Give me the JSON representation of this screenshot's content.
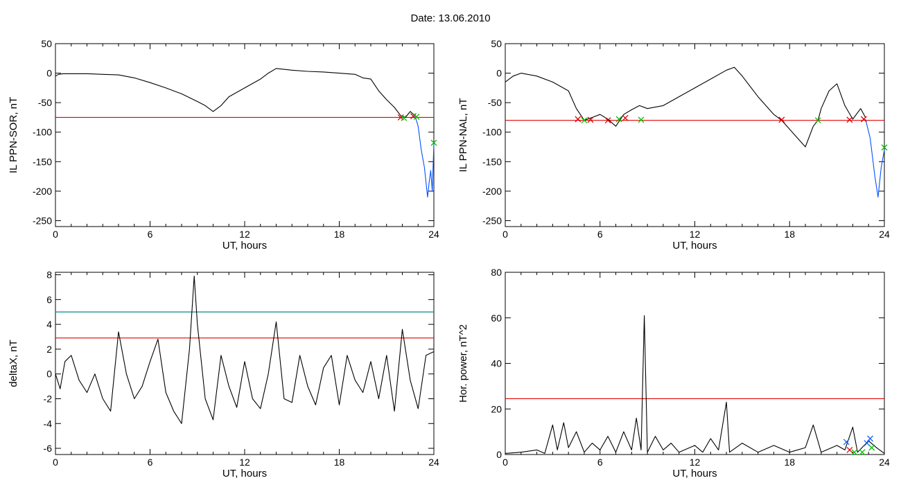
{
  "figure": {
    "title": "Date:  13.06.2010"
  },
  "chart_data": [
    {
      "type": "line",
      "ylabel": "IL PPN-SOR, nT",
      "xlabel": "UT, hours",
      "xlim": [
        0,
        24
      ],
      "ylim": [
        -260,
        50
      ],
      "xticks": [
        0,
        6,
        12,
        18,
        24
      ],
      "yticks": [
        50,
        0,
        -50,
        -100,
        -150,
        -200,
        -250
      ],
      "thresholds": [
        {
          "value": -75,
          "color": "#e00000"
        }
      ],
      "series": [
        {
          "color": "#000000",
          "points": [
            [
              0,
              -5
            ],
            [
              0.2,
              -2
            ],
            [
              0.5,
              -1
            ],
            [
              1,
              -1
            ],
            [
              2,
              -1
            ],
            [
              3,
              -2
            ],
            [
              4,
              -3
            ],
            [
              5,
              -8
            ],
            [
              6,
              -16
            ],
            [
              7,
              -25
            ],
            [
              8,
              -35
            ],
            [
              9,
              -48
            ],
            [
              9.5,
              -55
            ],
            [
              10,
              -65
            ],
            [
              10.5,
              -55
            ],
            [
              11,
              -40
            ],
            [
              12,
              -25
            ],
            [
              13,
              -10
            ],
            [
              13.5,
              0
            ],
            [
              14,
              8
            ],
            [
              15,
              5
            ],
            [
              16,
              3
            ],
            [
              17,
              2
            ],
            [
              18,
              0
            ],
            [
              19,
              -2
            ],
            [
              19.5,
              -8
            ],
            [
              20,
              -10
            ],
            [
              20.5,
              -30
            ],
            [
              21,
              -45
            ],
            [
              21.5,
              -58
            ],
            [
              21.9,
              -72
            ],
            [
              22.2,
              -75
            ],
            [
              22.5,
              -65
            ],
            [
              22.8,
              -72
            ]
          ]
        },
        {
          "color": "#0050ff",
          "points": [
            [
              22.8,
              -72
            ],
            [
              23,
              -90
            ],
            [
              23.2,
              -130
            ],
            [
              23.4,
              -160
            ],
            [
              23.6,
              -210
            ],
            [
              23.7,
              -185
            ],
            [
              23.8,
              -165
            ],
            [
              23.9,
              -200
            ],
            [
              24,
              -120
            ]
          ]
        }
      ],
      "markers": [
        {
          "x": 21.9,
          "y": -75,
          "color": "#e00000"
        },
        {
          "x": 22.1,
          "y": -76,
          "color": "#00c000"
        },
        {
          "x": 22.7,
          "y": -73,
          "color": "#e00000"
        },
        {
          "x": 22.9,
          "y": -74,
          "color": "#00c000"
        },
        {
          "x": 24,
          "y": -118,
          "color": "#00c000"
        }
      ]
    },
    {
      "type": "line",
      "ylabel": "IL PPN-NAL, nT",
      "xlabel": "UT, hours",
      "xlim": [
        0,
        24
      ],
      "ylim": [
        -260,
        50
      ],
      "xticks": [
        0,
        6,
        12,
        18,
        24
      ],
      "yticks": [
        50,
        0,
        -50,
        -100,
        -150,
        -200,
        -250
      ],
      "thresholds": [
        {
          "value": -80,
          "color": "#e00000"
        }
      ],
      "series": [
        {
          "color": "#000000",
          "points": [
            [
              0,
              -15
            ],
            [
              0.5,
              -5
            ],
            [
              1,
              0
            ],
            [
              2,
              -5
            ],
            [
              3,
              -15
            ],
            [
              4,
              -30
            ],
            [
              4.5,
              -60
            ],
            [
              5,
              -80
            ],
            [
              5.5,
              -75
            ],
            [
              6,
              -70
            ],
            [
              6.5,
              -78
            ],
            [
              7,
              -90
            ],
            [
              7.5,
              -70
            ],
            [
              8,
              -62
            ],
            [
              8.5,
              -55
            ],
            [
              9,
              -60
            ],
            [
              10,
              -55
            ],
            [
              11,
              -40
            ],
            [
              12,
              -25
            ],
            [
              13,
              -10
            ],
            [
              14,
              5
            ],
            [
              14.5,
              10
            ],
            [
              15,
              -5
            ],
            [
              16,
              -40
            ],
            [
              17,
              -70
            ],
            [
              17.5,
              -80
            ],
            [
              18,
              -95
            ],
            [
              18.5,
              -110
            ],
            [
              19,
              -125
            ],
            [
              19.5,
              -90
            ],
            [
              19.8,
              -80
            ],
            [
              20,
              -60
            ],
            [
              20.5,
              -30
            ],
            [
              21,
              -18
            ],
            [
              21.5,
              -55
            ],
            [
              22,
              -78
            ],
            [
              22.5,
              -60
            ],
            [
              22.8,
              -75
            ]
          ]
        },
        {
          "color": "#0050ff",
          "points": [
            [
              22.8,
              -78
            ],
            [
              23.1,
              -110
            ],
            [
              23.4,
              -175
            ],
            [
              23.6,
              -210
            ],
            [
              23.8,
              -160
            ],
            [
              24,
              -130
            ]
          ]
        }
      ],
      "markers": [
        {
          "x": 4.6,
          "y": -78,
          "color": "#e00000"
        },
        {
          "x": 5.0,
          "y": -80,
          "color": "#00c000"
        },
        {
          "x": 5.4,
          "y": -79,
          "color": "#e00000"
        },
        {
          "x": 6.5,
          "y": -80,
          "color": "#e00000"
        },
        {
          "x": 7.2,
          "y": -78,
          "color": "#00c000"
        },
        {
          "x": 7.6,
          "y": -76,
          "color": "#e00000"
        },
        {
          "x": 8.6,
          "y": -79,
          "color": "#00c000"
        },
        {
          "x": 17.5,
          "y": -79,
          "color": "#e00000"
        },
        {
          "x": 19.8,
          "y": -80,
          "color": "#00c000"
        },
        {
          "x": 21.8,
          "y": -79,
          "color": "#e00000"
        },
        {
          "x": 22.7,
          "y": -78,
          "color": "#e00000"
        },
        {
          "x": 24,
          "y": -126,
          "color": "#00c000"
        }
      ]
    },
    {
      "type": "line",
      "ylabel": "deltaX, nT",
      "xlabel": "UT, hours",
      "xlim": [
        0,
        24
      ],
      "ylim": [
        -6.5,
        8.2
      ],
      "xticks": [
        0,
        6,
        12,
        18,
        24
      ],
      "yticks": [
        8,
        6,
        4,
        2,
        0,
        -2,
        -4,
        -6
      ],
      "thresholds": [
        {
          "value": 5.0,
          "color": "#008b8b"
        },
        {
          "value": 2.9,
          "color": "#e00000"
        }
      ],
      "series": [
        {
          "color": "#000000",
          "points": [
            [
              0,
              0
            ],
            [
              0.3,
              -1.2
            ],
            [
              0.6,
              1
            ],
            [
              1,
              1.5
            ],
            [
              1.5,
              -0.5
            ],
            [
              2,
              -1.5
            ],
            [
              2.5,
              0
            ],
            [
              3,
              -2
            ],
            [
              3.5,
              -3
            ],
            [
              4,
              3.4
            ],
            [
              4.5,
              0
            ],
            [
              5,
              -2
            ],
            [
              5.5,
              -1
            ],
            [
              6,
              1
            ],
            [
              6.5,
              2.8
            ],
            [
              7,
              -1.5
            ],
            [
              7.5,
              -3
            ],
            [
              8,
              -4
            ],
            [
              8.5,
              2
            ],
            [
              8.8,
              7.9
            ],
            [
              9,
              4
            ],
            [
              9.5,
              -2
            ],
            [
              10,
              -3.7
            ],
            [
              10.5,
              1.5
            ],
            [
              11,
              -1
            ],
            [
              11.5,
              -2.7
            ],
            [
              12,
              1
            ],
            [
              12.5,
              -2
            ],
            [
              13,
              -2.8
            ],
            [
              13.5,
              0
            ],
            [
              14,
              4.2
            ],
            [
              14.5,
              -2
            ],
            [
              15,
              -2.3
            ],
            [
              15.5,
              1.5
            ],
            [
              16,
              -1
            ],
            [
              16.5,
              -2.5
            ],
            [
              17,
              0.5
            ],
            [
              17.5,
              1.5
            ],
            [
              18,
              -2.5
            ],
            [
              18.5,
              1.5
            ],
            [
              19,
              -0.5
            ],
            [
              19.5,
              -1.5
            ],
            [
              20,
              1
            ],
            [
              20.5,
              -2
            ],
            [
              21,
              1.5
            ],
            [
              21.5,
              -3
            ],
            [
              22,
              3.6
            ],
            [
              22.5,
              -0.5
            ],
            [
              23,
              -2.8
            ],
            [
              23.5,
              1.5
            ],
            [
              24,
              1.8
            ]
          ]
        }
      ],
      "markers": []
    },
    {
      "type": "line",
      "ylabel": "Hor. power, nT^2",
      "xlabel": "UT, hours",
      "xlim": [
        0,
        24
      ],
      "ylim": [
        0,
        80
      ],
      "xticks": [
        0,
        6,
        12,
        18,
        24
      ],
      "yticks": [
        80,
        60,
        40,
        20,
        0
      ],
      "thresholds": [
        {
          "value": 24.5,
          "color": "#e00000"
        }
      ],
      "series": [
        {
          "color": "#000000",
          "points": [
            [
              0,
              0.5
            ],
            [
              1,
              1
            ],
            [
              2,
              2
            ],
            [
              2.5,
              0.5
            ],
            [
              3,
              13
            ],
            [
              3.3,
              2
            ],
            [
              3.7,
              14
            ],
            [
              4,
              3
            ],
            [
              4.5,
              10
            ],
            [
              5,
              1
            ],
            [
              5.5,
              5
            ],
            [
              6,
              2
            ],
            [
              6.5,
              8
            ],
            [
              7,
              1
            ],
            [
              7.5,
              10
            ],
            [
              8,
              2
            ],
            [
              8.3,
              16
            ],
            [
              8.6,
              2
            ],
            [
              8.8,
              61
            ],
            [
              9,
              1
            ],
            [
              9.5,
              8
            ],
            [
              10,
              2
            ],
            [
              10.5,
              5
            ],
            [
              11,
              1
            ],
            [
              12,
              4
            ],
            [
              12.5,
              1
            ],
            [
              13,
              7
            ],
            [
              13.5,
              2
            ],
            [
              14,
              23
            ],
            [
              14.2,
              1
            ],
            [
              15,
              5
            ],
            [
              16,
              1
            ],
            [
              17,
              4
            ],
            [
              18,
              1
            ],
            [
              19,
              3
            ],
            [
              19.5,
              13
            ],
            [
              20,
              1
            ],
            [
              21,
              4
            ],
            [
              21.5,
              2
            ],
            [
              22,
              12
            ],
            [
              22.3,
              1
            ],
            [
              23,
              6
            ],
            [
              23.5,
              3
            ],
            [
              24,
              0.5
            ]
          ]
        }
      ],
      "markers": [
        {
          "x": 21.6,
          "y": 5.5,
          "color": "#1060ff"
        },
        {
          "x": 21.8,
          "y": 2,
          "color": "#e00000"
        },
        {
          "x": 22.1,
          "y": 1,
          "color": "#00c000"
        },
        {
          "x": 22.6,
          "y": 1,
          "color": "#00c000"
        },
        {
          "x": 22.9,
          "y": 5,
          "color": "#1060ff"
        },
        {
          "x": 23.1,
          "y": 7,
          "color": "#1060ff"
        },
        {
          "x": 23.2,
          "y": 3,
          "color": "#00c000"
        }
      ]
    }
  ]
}
